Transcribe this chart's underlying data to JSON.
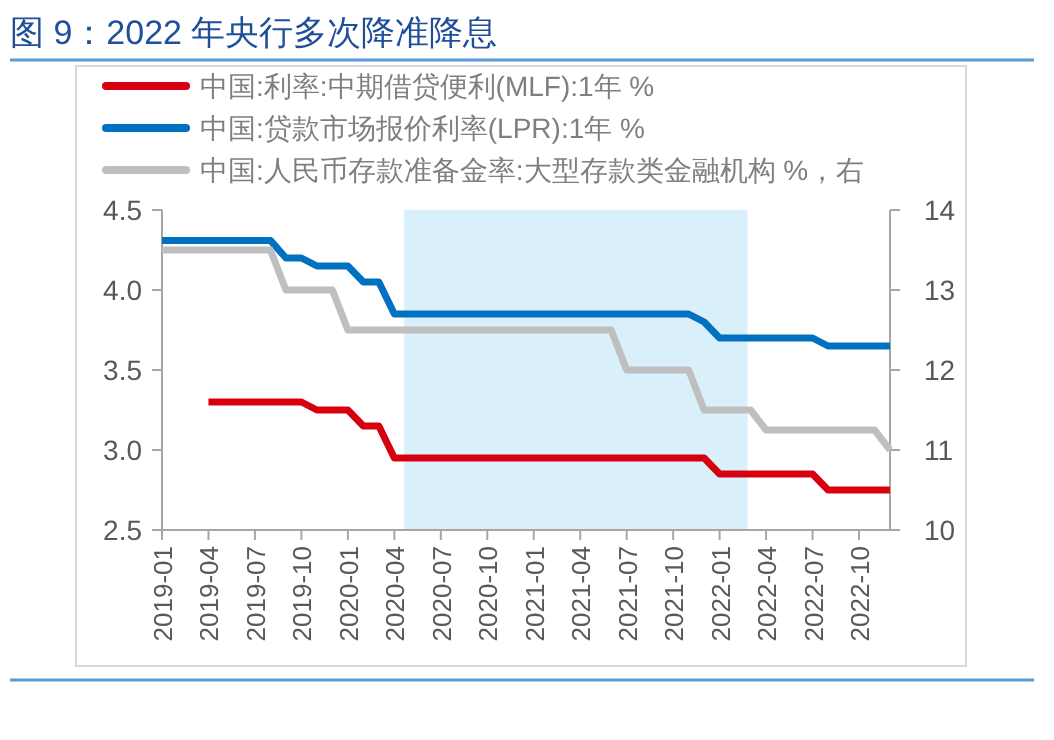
{
  "chart_data": {
    "type": "line",
    "title": "图 9：2022 年央行多次降准降息",
    "x": [
      "2019-01",
      "2019-02",
      "2019-03",
      "2019-04",
      "2019-05",
      "2019-06",
      "2019-07",
      "2019-08",
      "2019-09",
      "2019-10",
      "2019-11",
      "2019-12",
      "2020-01",
      "2020-02",
      "2020-03",
      "2020-04",
      "2020-05",
      "2020-06",
      "2020-07",
      "2020-08",
      "2020-09",
      "2020-10",
      "2020-11",
      "2020-12",
      "2021-01",
      "2021-02",
      "2021-03",
      "2021-04",
      "2021-05",
      "2021-06",
      "2021-07",
      "2021-08",
      "2021-09",
      "2021-10",
      "2021-11",
      "2021-12",
      "2022-01",
      "2022-02",
      "2022-03",
      "2022-04",
      "2022-05",
      "2022-06",
      "2022-07",
      "2022-08",
      "2022-09",
      "2022-10",
      "2022-11",
      "2022-12"
    ],
    "series": [
      {
        "name": "中国:利率:中期借贷便利(MLF):1年 %",
        "color": "#d7000f",
        "values": [
          null,
          null,
          null,
          3.3,
          3.3,
          3.3,
          3.3,
          3.3,
          3.3,
          3.3,
          3.25,
          3.25,
          3.25,
          3.15,
          3.15,
          2.95,
          2.95,
          2.95,
          2.95,
          2.95,
          2.95,
          2.95,
          2.95,
          2.95,
          2.95,
          2.95,
          2.95,
          2.95,
          2.95,
          2.95,
          2.95,
          2.95,
          2.95,
          2.95,
          2.95,
          2.95,
          2.85,
          2.85,
          2.85,
          2.85,
          2.85,
          2.85,
          2.85,
          2.75,
          2.75,
          2.75,
          2.75,
          2.75
        ]
      },
      {
        "name": "中国:贷款市场报价利率(LPR):1年 %",
        "color": "#0070c0",
        "values": [
          4.31,
          4.31,
          4.31,
          4.31,
          4.31,
          4.31,
          4.31,
          4.31,
          4.2,
          4.2,
          4.15,
          4.15,
          4.15,
          4.05,
          4.05,
          3.85,
          3.85,
          3.85,
          3.85,
          3.85,
          3.85,
          3.85,
          3.85,
          3.85,
          3.85,
          3.85,
          3.85,
          3.85,
          3.85,
          3.85,
          3.85,
          3.85,
          3.85,
          3.85,
          3.85,
          3.8,
          3.7,
          3.7,
          3.7,
          3.7,
          3.7,
          3.7,
          3.7,
          3.65,
          3.65,
          3.65,
          3.65,
          3.65
        ]
      },
      {
        "name": "中国:人民币存款准备金率:大型存款类金融机构 %，右",
        "color": "#bfbfbf",
        "axis": "y2",
        "values": [
          13.5,
          13.5,
          13.5,
          13.5,
          13.5,
          13.5,
          13.5,
          13.5,
          13.0,
          13.0,
          13.0,
          13.0,
          12.5,
          12.5,
          12.5,
          12.5,
          12.5,
          12.5,
          12.5,
          12.5,
          12.5,
          12.5,
          12.5,
          12.5,
          12.5,
          12.5,
          12.5,
          12.5,
          12.5,
          12.5,
          12.0,
          12.0,
          12.0,
          12.0,
          12.0,
          11.5,
          11.5,
          11.5,
          11.5,
          11.25,
          11.25,
          11.25,
          11.25,
          11.25,
          11.25,
          11.25,
          11.25,
          11.0
        ]
      }
    ],
    "xlim": [
      "2019-01",
      "2022-12"
    ],
    "xticks": [
      "2019-01",
      "2019-04",
      "2019-07",
      "2019-10",
      "2020-01",
      "2020-04",
      "2020-07",
      "2020-10",
      "2021-01",
      "2021-04",
      "2021-07",
      "2021-10",
      "2022-01",
      "2022-04",
      "2022-07",
      "2022-10"
    ],
    "ylim": [
      2.5,
      4.5
    ],
    "yticks": [
      2.5,
      {
        "value": 3,
        "label": "3.0"
      },
      3.5,
      {
        "value": 4,
        "label": "4.0"
      },
      4.5
    ],
    "y2lim": [
      10,
      14
    ],
    "y2ticks": [
      10,
      11,
      12,
      13,
      14
    ],
    "bands": [
      {
        "axis": "x",
        "from": "2020-04-20",
        "to": "2022-02-25",
        "color": "#d9f0fb"
      }
    ],
    "legend": "top",
    "grid": false
  }
}
